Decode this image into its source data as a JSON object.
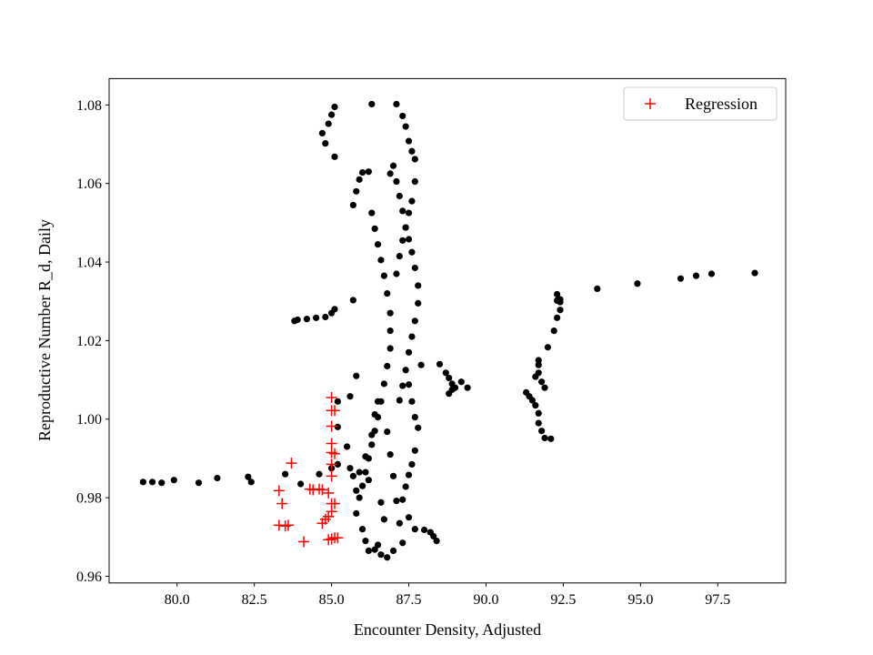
{
  "chart_data": {
    "type": "scatter",
    "title": "",
    "xlabel": "Encounter Density, Adjusted",
    "ylabel": "Reproductive Number R_d, Daily",
    "xlim": [
      77.8,
      99.7
    ],
    "ylim": [
      0.9583,
      1.0867
    ],
    "xticks": [
      "80.0",
      "82.5",
      "85.0",
      "87.5",
      "90.0",
      "92.5",
      "95.0",
      "97.5"
    ],
    "yticks": [
      "0.96",
      "0.98",
      "1.00",
      "1.02",
      "1.04",
      "1.06",
      "1.08"
    ],
    "grid": false,
    "legend": {
      "position": "top-right",
      "entries": [
        "Regression"
      ]
    },
    "colors": {
      "data": "#000000",
      "regression": "#ff0000"
    },
    "series": [
      {
        "marker": "dot",
        "points": [
          [
            78.9,
            0.984
          ],
          [
            79.2,
            0.984
          ],
          [
            79.5,
            0.9838
          ],
          [
            79.9,
            0.9845
          ],
          [
            80.7,
            0.9838
          ],
          [
            81.3,
            0.985
          ],
          [
            82.3,
            0.9853
          ],
          [
            82.4,
            0.984
          ],
          [
            83.5,
            0.986
          ],
          [
            84.0,
            0.9835
          ],
          [
            84.6,
            0.986
          ],
          [
            85.0,
            0.9875
          ],
          [
            85.2,
            0.9885
          ],
          [
            83.8,
            1.025
          ],
          [
            83.9,
            1.0253
          ],
          [
            84.2,
            1.0255
          ],
          [
            84.5,
            1.0258
          ],
          [
            84.8,
            1.026
          ],
          [
            85.0,
            1.027
          ],
          [
            85.1,
            1.028
          ],
          [
            85.7,
            1.0303
          ],
          [
            84.7,
            1.0728
          ],
          [
            84.8,
            1.0702
          ],
          [
            84.9,
            1.0752
          ],
          [
            85.0,
            1.0775
          ],
          [
            85.1,
            1.0795
          ],
          [
            85.1,
            1.0668
          ],
          [
            85.2,
            1.0045
          ],
          [
            85.2,
            0.998
          ],
          [
            85.6,
            1.0058
          ],
          [
            85.8,
            1.011
          ],
          [
            85.7,
            1.0545
          ],
          [
            85.8,
            1.058
          ],
          [
            85.9,
            1.061
          ],
          [
            86.0,
            1.0628
          ],
          [
            86.2,
            1.063
          ],
          [
            86.3,
            1.0802
          ],
          [
            86.3,
            1.0525
          ],
          [
            86.4,
            1.0485
          ],
          [
            86.5,
            1.0445
          ],
          [
            86.6,
            1.0405
          ],
          [
            86.7,
            1.0365
          ],
          [
            86.8,
            1.032
          ],
          [
            86.9,
            1.027
          ],
          [
            86.9,
            1.0225
          ],
          [
            86.9,
            1.018
          ],
          [
            86.8,
            1.0135
          ],
          [
            86.7,
            1.009
          ],
          [
            86.6,
            1.0045
          ],
          [
            86.5,
            1.0005
          ],
          [
            86.4,
            0.997
          ],
          [
            86.3,
            0.9935
          ],
          [
            86.2,
            0.99
          ],
          [
            86.1,
            0.9865
          ],
          [
            86.0,
            0.983
          ],
          [
            85.9,
            0.98
          ],
          [
            85.8,
            0.976
          ],
          [
            86.0,
            0.972
          ],
          [
            86.1,
            0.969
          ],
          [
            86.2,
            0.9665
          ],
          [
            86.4,
            0.9668
          ],
          [
            86.5,
            0.968
          ],
          [
            86.6,
            0.9655
          ],
          [
            86.8,
            0.9648
          ],
          [
            87.0,
            0.9665
          ],
          [
            85.5,
            0.993
          ],
          [
            85.6,
            0.9875
          ],
          [
            85.7,
            0.9855
          ],
          [
            85.8,
            0.9818
          ],
          [
            85.9,
            0.9865
          ],
          [
            86.1,
            0.9905
          ],
          [
            86.2,
            0.9845
          ],
          [
            86.3,
            0.996
          ],
          [
            86.4,
            1.0012
          ],
          [
            86.5,
            1.0045
          ],
          [
            86.6,
            0.9788
          ],
          [
            86.7,
            0.9745
          ],
          [
            86.8,
            0.9968
          ],
          [
            86.9,
            0.991
          ],
          [
            87.0,
            0.9855
          ],
          [
            87.1,
            0.9792
          ],
          [
            87.2,
            0.9735
          ],
          [
            87.3,
            0.9685
          ],
          [
            86.9,
            1.0625
          ],
          [
            87.0,
            1.0645
          ],
          [
            87.1,
            1.0605
          ],
          [
            87.2,
            1.0568
          ],
          [
            87.3,
            1.053
          ],
          [
            87.4,
            1.0488
          ],
          [
            87.5,
            1.0458
          ],
          [
            87.6,
            1.0425
          ],
          [
            87.7,
            1.0385
          ],
          [
            87.8,
            1.034
          ],
          [
            87.8,
            1.0295
          ],
          [
            87.7,
            1.025
          ],
          [
            87.6,
            1.021
          ],
          [
            87.5,
            1.017
          ],
          [
            87.4,
            1.0125
          ],
          [
            87.3,
            1.0085
          ],
          [
            87.2,
            1.0048
          ],
          [
            87.1,
            1.0802
          ],
          [
            87.3,
            1.0772
          ],
          [
            87.4,
            1.0745
          ],
          [
            87.5,
            1.0708
          ],
          [
            87.6,
            1.0682
          ],
          [
            87.7,
            1.0662
          ],
          [
            87.7,
            1.0605
          ],
          [
            87.6,
            1.0555
          ],
          [
            87.5,
            1.0525
          ],
          [
            87.4,
            1.0488
          ],
          [
            87.3,
            1.0455
          ],
          [
            87.2,
            1.0415
          ],
          [
            87.1,
            1.037
          ],
          [
            87.5,
            1.0088
          ],
          [
            87.6,
            1.0045
          ],
          [
            87.7,
            1.0005
          ],
          [
            87.8,
            0.9978
          ],
          [
            87.7,
            0.992
          ],
          [
            87.6,
            0.9885
          ],
          [
            87.5,
            0.9858
          ],
          [
            87.4,
            0.9828
          ],
          [
            87.3,
            0.9795
          ],
          [
            87.5,
            0.975
          ],
          [
            87.7,
            0.972
          ],
          [
            88.0,
            0.9718
          ],
          [
            88.2,
            0.9712
          ],
          [
            88.3,
            0.9702
          ],
          [
            88.4,
            0.969
          ],
          [
            87.9,
            1.0138
          ],
          [
            88.5,
            1.014
          ],
          [
            88.7,
            1.0118
          ],
          [
            88.8,
            1.0105
          ],
          [
            88.9,
            1.009
          ],
          [
            89.0,
            1.008
          ],
          [
            89.2,
            1.0095
          ],
          [
            89.4,
            1.008
          ],
          [
            88.8,
            1.0065
          ],
          [
            88.9,
            1.0075
          ],
          [
            91.3,
            1.0068
          ],
          [
            91.4,
            1.0058
          ],
          [
            91.5,
            1.0048
          ],
          [
            91.6,
            1.0035
          ],
          [
            91.7,
            1.0015
          ],
          [
            91.7,
            0.999
          ],
          [
            91.8,
            0.997
          ],
          [
            91.9,
            0.9952
          ],
          [
            92.1,
            0.995
          ],
          [
            91.6,
            1.0108
          ],
          [
            91.7,
            1.0118
          ],
          [
            91.8,
            1.0095
          ],
          [
            91.9,
            1.008
          ],
          [
            91.7,
            1.0138
          ],
          [
            91.7,
            1.015
          ],
          [
            92.0,
            1.0183
          ],
          [
            92.2,
            1.0225
          ],
          [
            92.3,
            1.0258
          ],
          [
            92.4,
            1.0278
          ],
          [
            92.3,
            1.0302
          ],
          [
            92.4,
            1.0298
          ],
          [
            92.3,
            1.0318
          ],
          [
            92.4,
            1.0305
          ],
          [
            93.6,
            1.0332
          ],
          [
            94.9,
            1.0345
          ],
          [
            96.3,
            1.0358
          ],
          [
            96.8,
            1.0365
          ],
          [
            97.3,
            1.037
          ],
          [
            98.7,
            1.0372
          ]
        ]
      },
      {
        "name": "Regression",
        "marker": "plus",
        "points": [
          [
            83.3,
            0.9818
          ],
          [
            83.4,
            0.9785
          ],
          [
            83.3,
            0.973
          ],
          [
            83.5,
            0.9728
          ],
          [
            83.6,
            0.973
          ],
          [
            83.7,
            0.9888
          ],
          [
            84.1,
            0.9688
          ],
          [
            84.3,
            0.9822
          ],
          [
            84.4,
            0.982
          ],
          [
            84.6,
            0.9822
          ],
          [
            84.7,
            0.9735
          ],
          [
            84.7,
            0.982
          ],
          [
            84.8,
            0.9745
          ],
          [
            84.9,
            0.9693
          ],
          [
            84.9,
            0.9752
          ],
          [
            84.9,
            0.9812
          ],
          [
            85.0,
            0.9855
          ],
          [
            85.0,
            0.9885
          ],
          [
            85.0,
            0.9938
          ],
          [
            85.0,
            0.9982
          ],
          [
            85.0,
            1.0022
          ],
          [
            85.0,
            1.0055
          ],
          [
            85.0,
            0.9785
          ],
          [
            85.0,
            0.9695
          ],
          [
            85.1,
            0.9785
          ],
          [
            85.1,
            0.9698
          ],
          [
            85.1,
            0.9912
          ],
          [
            85.2,
            0.9698
          ],
          [
            84.9,
            0.9752
          ],
          [
            85.0,
            0.9765
          ],
          [
            85.1,
            1.0022
          ],
          [
            85.0,
            0.9915
          ]
        ]
      }
    ]
  }
}
